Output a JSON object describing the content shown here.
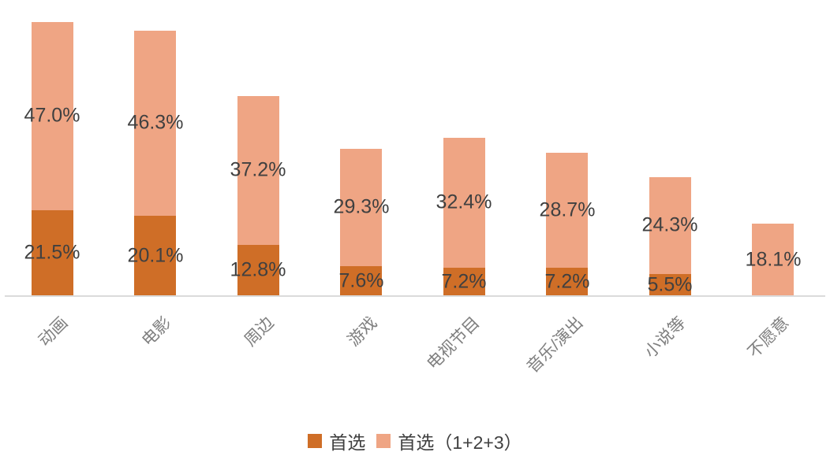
{
  "chart_data": {
    "type": "bar",
    "subtype": "stacked-vertical",
    "title": "",
    "xlabel": "",
    "ylabel": "",
    "unit": "%",
    "grid": false,
    "legend_position": "bottom",
    "ylim": [
      0,
      70
    ],
    "categories": [
      "动画",
      "电影",
      "周边",
      "游戏",
      "电视节目",
      "音乐/演出",
      "小说等",
      "不愿意"
    ],
    "series": [
      {
        "name": "首选",
        "color": "#CF6E27",
        "values": [
          21.5,
          20.1,
          12.8,
          7.6,
          7.2,
          7.2,
          5.5,
          null
        ],
        "labels": [
          "21.5%",
          "20.1%",
          "12.8%",
          "7.6%",
          "7.2%",
          "7.2%",
          "5.5%",
          ""
        ]
      },
      {
        "name": "首选（1+2+3）",
        "color": "#EFA584",
        "values": [
          47.0,
          46.3,
          37.2,
          29.3,
          32.4,
          28.7,
          24.3,
          18.1
        ],
        "labels": [
          "47.0%",
          "46.3%",
          "37.2%",
          "29.3%",
          "32.4%",
          "28.7%",
          "24.3%",
          "18.1%"
        ]
      }
    ]
  },
  "legend": {
    "items": [
      {
        "label": "首选",
        "color": "#CF6E27"
      },
      {
        "label": "首选（1+2+3）",
        "color": "#EFA584"
      }
    ]
  },
  "colors": {
    "primary": "#CF6E27",
    "secondary": "#EFA584",
    "value_label": "#404040",
    "category_label": "#7F7F7F",
    "axis_line": "#DBDBDB",
    "background": "#FFFFFF"
  }
}
